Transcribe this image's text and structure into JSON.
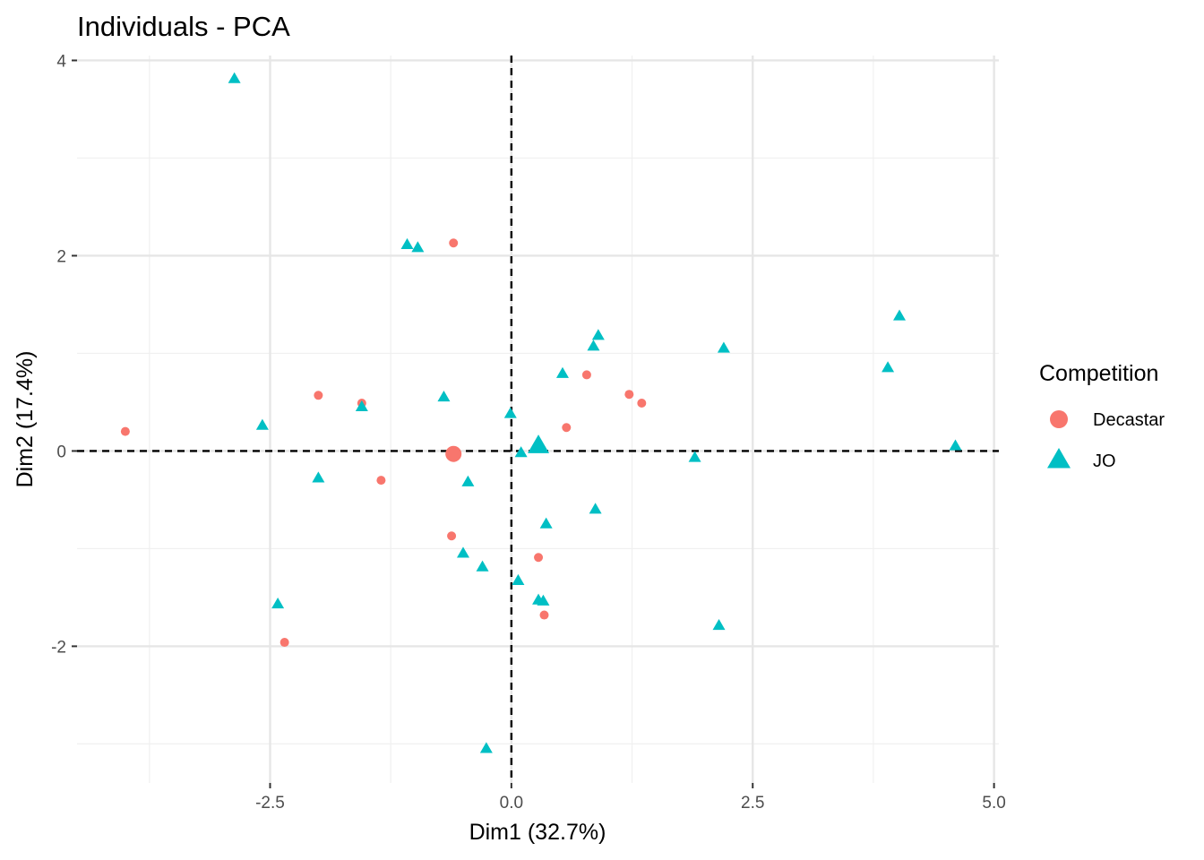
{
  "chart_data": {
    "type": "scatter",
    "title": "Individuals - PCA",
    "xlabel": "Dim1 (32.7%)",
    "ylabel": "Dim2 (17.4%)",
    "xlim": [
      -4.5,
      5.05
    ],
    "ylim": [
      -3.4,
      4.05
    ],
    "x_ticks": [
      -2.5,
      0.0,
      2.5,
      5.0
    ],
    "x_tick_labels": [
      "-2.5",
      "0.0",
      "2.5",
      "5.0"
    ],
    "y_ticks": [
      -2,
      0,
      2,
      4
    ],
    "y_tick_labels": [
      "-2",
      "0",
      "2",
      "4"
    ],
    "grid": true,
    "reference_lines": {
      "x": 0,
      "y": 0,
      "style": "dashed"
    },
    "legend": {
      "title": "Competition",
      "position": "right"
    },
    "series": [
      {
        "name": "Decastar",
        "color": "#F8766D",
        "shape": "circle",
        "points": [
          [
            -4.0,
            0.2
          ],
          [
            -2.0,
            0.57
          ],
          [
            -1.55,
            0.49
          ],
          [
            -1.35,
            -0.3
          ],
          [
            -0.6,
            2.13
          ],
          [
            -0.62,
            -0.87
          ],
          [
            0.28,
            -1.09
          ],
          [
            0.34,
            -1.68
          ],
          [
            0.57,
            0.24
          ],
          [
            0.78,
            0.78
          ],
          [
            1.22,
            0.58
          ],
          [
            1.35,
            0.49
          ],
          [
            -2.35,
            -1.96
          ]
        ],
        "barycenter": [
          -0.6,
          -0.03
        ]
      },
      {
        "name": "JO",
        "color": "#00BFC4",
        "shape": "triangle",
        "points": [
          [
            -2.87,
            3.81
          ],
          [
            -2.58,
            0.26
          ],
          [
            -2.0,
            -0.28
          ],
          [
            -2.42,
            -1.57
          ],
          [
            -1.08,
            2.11
          ],
          [
            -0.97,
            2.08
          ],
          [
            -1.55,
            0.45
          ],
          [
            -0.7,
            0.55
          ],
          [
            -0.45,
            -0.32
          ],
          [
            -0.5,
            -1.05
          ],
          [
            -0.3,
            -1.19
          ],
          [
            -0.26,
            -3.05
          ],
          [
            -0.01,
            0.38
          ],
          [
            0.1,
            -0.02
          ],
          [
            0.07,
            -1.33
          ],
          [
            0.28,
            -1.53
          ],
          [
            0.33,
            -1.54
          ],
          [
            0.36,
            -0.75
          ],
          [
            0.53,
            0.79
          ],
          [
            0.85,
            1.07
          ],
          [
            0.9,
            1.18
          ],
          [
            0.87,
            -0.6
          ],
          [
            1.9,
            -0.07
          ],
          [
            2.2,
            1.05
          ],
          [
            2.15,
            -1.79
          ],
          [
            3.9,
            0.85
          ],
          [
            4.02,
            1.38
          ],
          [
            4.6,
            0.05
          ]
        ],
        "barycenter": [
          0.28,
          0.05
        ]
      }
    ]
  }
}
